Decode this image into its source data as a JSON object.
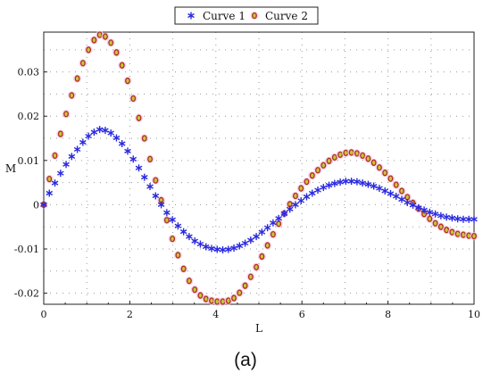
{
  "caption": "(a)",
  "chart_data": {
    "type": "scatter",
    "xlabel": "L",
    "ylabel": "M",
    "xlim": [
      0,
      10
    ],
    "ylim": [
      -0.0225,
      0.039
    ],
    "x_ticks": [
      0,
      2,
      4,
      6,
      8,
      10
    ],
    "y_ticks": [
      -0.02,
      -0.01,
      0,
      0.01,
      0.02,
      0.03
    ],
    "y_tick_labels": [
      "-0.02",
      "-0.01",
      "0",
      "0.01",
      "0.02",
      "0.03"
    ],
    "grid": true,
    "legend_position": "top-center",
    "series": [
      {
        "name": "Curve 1",
        "marker": "star",
        "color": "#2a2ae0",
        "points": [
          [
            0.0,
            0.0
          ],
          [
            0.13,
            0.0026
          ],
          [
            0.26,
            0.0049
          ],
          [
            0.39,
            0.0071
          ],
          [
            0.52,
            0.0091
          ],
          [
            0.65,
            0.0109
          ],
          [
            0.78,
            0.0125
          ],
          [
            0.91,
            0.0141
          ],
          [
            1.04,
            0.0155
          ],
          [
            1.17,
            0.0164
          ],
          [
            1.3,
            0.017
          ],
          [
            1.43,
            0.0168
          ],
          [
            1.56,
            0.0162
          ],
          [
            1.69,
            0.0151
          ],
          [
            1.82,
            0.0138
          ],
          [
            1.95,
            0.0121
          ],
          [
            2.08,
            0.0103
          ],
          [
            2.21,
            0.0083
          ],
          [
            2.34,
            0.0062
          ],
          [
            2.47,
            0.0041
          ],
          [
            2.6,
            0.002
          ],
          [
            2.73,
            0.0
          ],
          [
            2.86,
            -0.0018
          ],
          [
            2.99,
            -0.0034
          ],
          [
            3.12,
            -0.0048
          ],
          [
            3.25,
            -0.0061
          ],
          [
            3.38,
            -0.0072
          ],
          [
            3.51,
            -0.0082
          ],
          [
            3.64,
            -0.0089
          ],
          [
            3.77,
            -0.0095
          ],
          [
            3.9,
            -0.0099
          ],
          [
            4.03,
            -0.0101
          ],
          [
            4.16,
            -0.0102
          ],
          [
            4.29,
            -0.0101
          ],
          [
            4.42,
            -0.0098
          ],
          [
            4.55,
            -0.0093
          ],
          [
            4.68,
            -0.0087
          ],
          [
            4.81,
            -0.008
          ],
          [
            4.94,
            -0.0072
          ],
          [
            5.07,
            -0.0062
          ],
          [
            5.2,
            -0.0052
          ],
          [
            5.33,
            -0.0041
          ],
          [
            5.46,
            -0.0031
          ],
          [
            5.59,
            -0.002
          ],
          [
            5.72,
            -0.001
          ],
          [
            5.85,
            0.0
          ],
          [
            5.98,
            0.0009
          ],
          [
            6.11,
            0.0018
          ],
          [
            6.24,
            0.0026
          ],
          [
            6.37,
            0.0033
          ],
          [
            6.5,
            0.0039
          ],
          [
            6.63,
            0.0044
          ],
          [
            6.76,
            0.0048
          ],
          [
            6.89,
            0.0051
          ],
          [
            7.02,
            0.0053
          ],
          [
            7.15,
            0.0053
          ],
          [
            7.28,
            0.0052
          ],
          [
            7.41,
            0.0049
          ],
          [
            7.54,
            0.0046
          ],
          [
            7.67,
            0.0042
          ],
          [
            7.8,
            0.0037
          ],
          [
            7.93,
            0.0031
          ],
          [
            8.06,
            0.0025
          ],
          [
            8.19,
            0.0019
          ],
          [
            8.32,
            0.0012
          ],
          [
            8.45,
            0.0005
          ],
          [
            8.58,
            -0.0001
          ],
          [
            8.71,
            -0.0007
          ],
          [
            8.84,
            -0.0012
          ],
          [
            8.97,
            -0.0017
          ],
          [
            9.1,
            -0.0021
          ],
          [
            9.23,
            -0.0025
          ],
          [
            9.36,
            -0.0028
          ],
          [
            9.49,
            -0.003
          ],
          [
            9.62,
            -0.0032
          ],
          [
            9.75,
            -0.0033
          ],
          [
            9.88,
            -0.0033
          ],
          [
            10.0,
            -0.0033
          ]
        ]
      },
      {
        "name": "Curve 2",
        "marker": "circle",
        "color": "#b03020",
        "points": [
          [
            0.0,
            0.0
          ],
          [
            0.13,
            0.0058
          ],
          [
            0.26,
            0.0111
          ],
          [
            0.39,
            0.016
          ],
          [
            0.52,
            0.0205
          ],
          [
            0.65,
            0.0247
          ],
          [
            0.78,
            0.0285
          ],
          [
            0.91,
            0.032
          ],
          [
            1.04,
            0.035
          ],
          [
            1.17,
            0.0372
          ],
          [
            1.3,
            0.0384
          ],
          [
            1.43,
            0.038
          ],
          [
            1.56,
            0.0366
          ],
          [
            1.69,
            0.0344
          ],
          [
            1.82,
            0.0315
          ],
          [
            1.95,
            0.028
          ],
          [
            2.08,
            0.024
          ],
          [
            2.21,
            0.0196
          ],
          [
            2.34,
            0.015
          ],
          [
            2.47,
            0.0103
          ],
          [
            2.6,
            0.0055
          ],
          [
            2.73,
            0.001
          ],
          [
            2.86,
            -0.0035
          ],
          [
            2.99,
            -0.0077
          ],
          [
            3.12,
            -0.0114
          ],
          [
            3.25,
            -0.0145
          ],
          [
            3.38,
            -0.0172
          ],
          [
            3.51,
            -0.0192
          ],
          [
            3.64,
            -0.0205
          ],
          [
            3.77,
            -0.0213
          ],
          [
            3.9,
            -0.0217
          ],
          [
            4.03,
            -0.0219
          ],
          [
            4.16,
            -0.0219
          ],
          [
            4.29,
            -0.0217
          ],
          [
            4.42,
            -0.0211
          ],
          [
            4.55,
            -0.0199
          ],
          [
            4.68,
            -0.0183
          ],
          [
            4.81,
            -0.0163
          ],
          [
            4.94,
            -0.0141
          ],
          [
            5.07,
            -0.0117
          ],
          [
            5.2,
            -0.0092
          ],
          [
            5.33,
            -0.0067
          ],
          [
            5.46,
            -0.0043
          ],
          [
            5.59,
            -0.002
          ],
          [
            5.72,
            0.0001
          ],
          [
            5.85,
            0.002
          ],
          [
            5.98,
            0.0037
          ],
          [
            6.11,
            0.0052
          ],
          [
            6.24,
            0.0066
          ],
          [
            6.37,
            0.0078
          ],
          [
            6.5,
            0.0089
          ],
          [
            6.63,
            0.0099
          ],
          [
            6.76,
            0.0107
          ],
          [
            6.89,
            0.0113
          ],
          [
            7.02,
            0.0117
          ],
          [
            7.15,
            0.0118
          ],
          [
            7.28,
            0.0116
          ],
          [
            7.41,
            0.0111
          ],
          [
            7.54,
            0.0104
          ],
          [
            7.67,
            0.0095
          ],
          [
            7.8,
            0.0084
          ],
          [
            7.93,
            0.0072
          ],
          [
            8.06,
            0.0059
          ],
          [
            8.19,
            0.0045
          ],
          [
            8.32,
            0.0031
          ],
          [
            8.45,
            0.0017
          ],
          [
            8.58,
            0.0004
          ],
          [
            8.71,
            -0.0009
          ],
          [
            8.84,
            -0.0021
          ],
          [
            8.97,
            -0.0032
          ],
          [
            9.1,
            -0.0042
          ],
          [
            9.23,
            -0.005
          ],
          [
            9.36,
            -0.0057
          ],
          [
            9.49,
            -0.0062
          ],
          [
            9.62,
            -0.0066
          ],
          [
            9.75,
            -0.0068
          ],
          [
            9.88,
            -0.007
          ],
          [
            10.0,
            -0.0071
          ]
        ]
      }
    ]
  }
}
